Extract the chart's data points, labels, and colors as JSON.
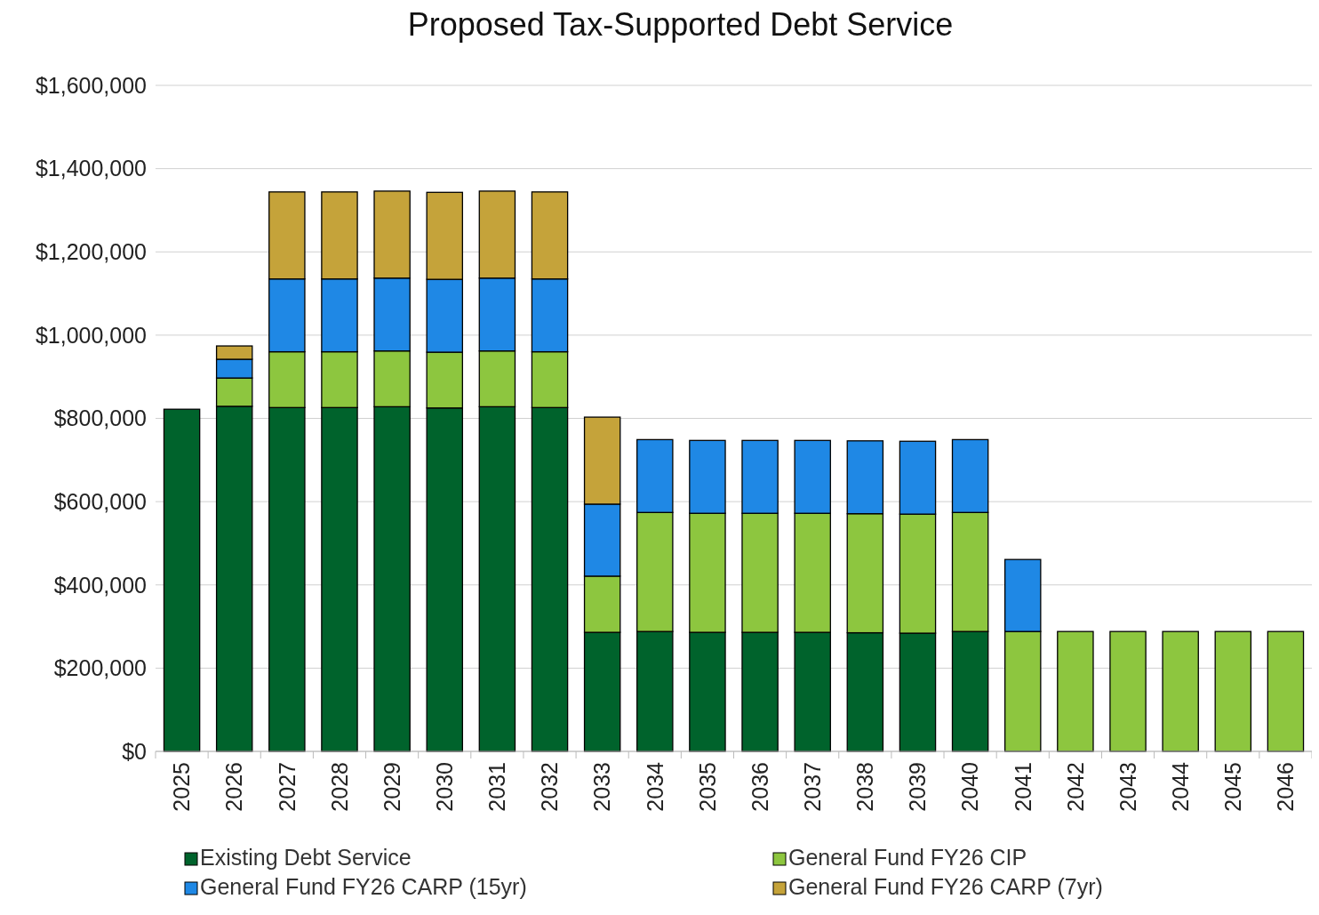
{
  "chart_data": {
    "type": "bar",
    "title": "Proposed Tax-Supported Debt Service",
    "stacked": true,
    "categories": [
      "2025",
      "2026",
      "2027",
      "2028",
      "2029",
      "2030",
      "2031",
      "2032",
      "2033",
      "2034",
      "2035",
      "2036",
      "2037",
      "2038",
      "2039",
      "2040",
      "2041",
      "2042",
      "2043",
      "2044",
      "2045",
      "2046"
    ],
    "series": [
      {
        "name": "Existing Debt Service",
        "color": "#00632c",
        "values": [
          822000,
          829000,
          826000,
          826000,
          828000,
          825000,
          828000,
          826000,
          286000,
          288000,
          286000,
          286000,
          286000,
          285000,
          284000,
          288000,
          null,
          null,
          null,
          null,
          null,
          null
        ]
      },
      {
        "name": "General Fund FY26 CIP",
        "color": "#8dc63f",
        "values": [
          null,
          68000,
          134000,
          134000,
          134000,
          134000,
          134000,
          134000,
          135000,
          286000,
          286000,
          286000,
          286000,
          286000,
          286000,
          286000,
          288000,
          288000,
          288000,
          288000,
          288000,
          288000
        ]
      },
      {
        "name": "General Fund FY26 CARP (15yr)",
        "color": "#1f88e5",
        "values": [
          null,
          45000,
          175000,
          175000,
          175000,
          175000,
          175000,
          175000,
          173000,
          175000,
          175000,
          175000,
          175000,
          175000,
          175000,
          175000,
          173000,
          null,
          null,
          null,
          null,
          null
        ]
      },
      {
        "name": "General Fund FY26 CARP (7yr)",
        "color": "#c5a33a",
        "values": [
          null,
          32000,
          209000,
          209000,
          209000,
          209000,
          209000,
          209000,
          209000,
          null,
          null,
          null,
          null,
          null,
          null,
          null,
          null,
          null,
          null,
          null,
          null,
          null
        ]
      }
    ],
    "ylim": [
      0,
      1600000
    ],
    "yticks": [
      {
        "value": 0,
        "label": "$0"
      },
      {
        "value": 200000,
        "label": "$200,000"
      },
      {
        "value": 400000,
        "label": "$400,000"
      },
      {
        "value": 600000,
        "label": "$600,000"
      },
      {
        "value": 800000,
        "label": "$800,000"
      },
      {
        "value": 1000000,
        "label": "$1,000,000"
      },
      {
        "value": 1200000,
        "label": "$1,200,000"
      },
      {
        "value": 1400000,
        "label": "$1,400,000"
      },
      {
        "value": 1600000,
        "label": "$1,600,000"
      }
    ],
    "grid": "y",
    "legend": "bottom"
  }
}
